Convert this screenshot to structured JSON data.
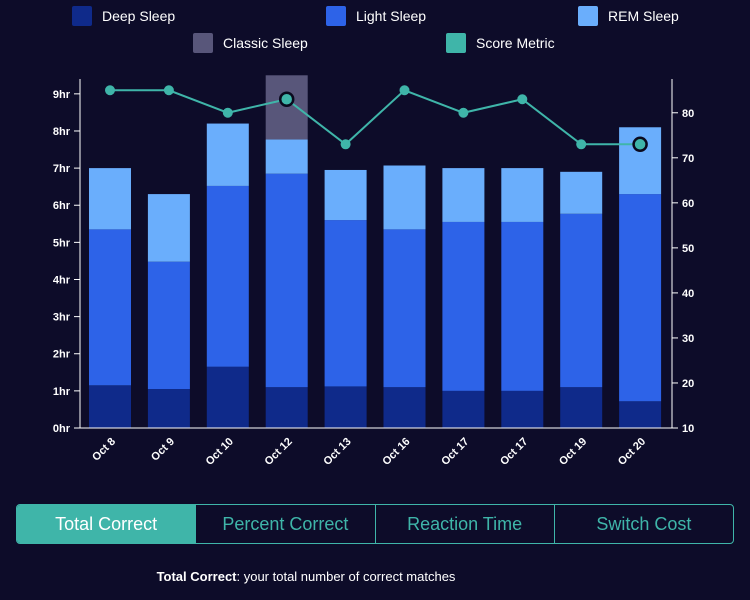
{
  "chart_data": {
    "type": "bar",
    "stacked": true,
    "categories": [
      "Oct 8",
      "Oct 9",
      "Oct 10",
      "Oct 12",
      "Oct 13",
      "Oct 16",
      "Oct 17",
      "Oct 17",
      "Oct 19",
      "Oct 20"
    ],
    "series": [
      {
        "name": "Deep Sleep",
        "color": "#0f2a8a",
        "values": [
          1.15,
          1.05,
          1.65,
          1.1,
          1.12,
          1.1,
          1.0,
          1.0,
          1.1,
          0.72
        ]
      },
      {
        "name": "Light Sleep",
        "color": "#2d63e8",
        "values": [
          4.2,
          3.43,
          4.87,
          5.75,
          4.48,
          4.25,
          4.55,
          4.55,
          4.67,
          5.58
        ]
      },
      {
        "name": "REM Sleep",
        "color": "#6aaefc",
        "values": [
          1.65,
          1.82,
          1.68,
          0.92,
          1.35,
          1.72,
          1.45,
          1.45,
          1.13,
          1.8
        ]
      },
      {
        "name": "Classic Sleep",
        "color": "#58567a",
        "values": [
          0,
          0,
          0,
          1.73,
          0,
          0,
          0,
          0,
          0,
          0
        ]
      }
    ],
    "line_series": {
      "name": "Score Metric",
      "color": "#3fb5a9",
      "values": [
        85,
        85,
        80,
        83,
        73,
        85,
        80,
        83,
        73,
        73
      ],
      "highlighted": [
        false,
        false,
        false,
        true,
        false,
        false,
        false,
        false,
        false,
        true
      ]
    },
    "y_left": {
      "min": 0,
      "max": 9.4,
      "ticks": [
        0,
        1,
        2,
        3,
        4,
        5,
        6,
        7,
        8,
        9
      ],
      "labels": [
        "0hr",
        "1hr",
        "2hr",
        "3hr",
        "4hr",
        "5hr",
        "6hr",
        "7hr",
        "8hr",
        "9hr"
      ]
    },
    "y_right": {
      "min": 10,
      "max": 87.5,
      "ticks": [
        10,
        20,
        30,
        40,
        50,
        60,
        70,
        80
      ],
      "labels": [
        "10",
        "20",
        "30",
        "40",
        "50",
        "60",
        "70",
        "80"
      ]
    },
    "legend": [
      {
        "label": "Deep Sleep",
        "color": "#0f2a8a"
      },
      {
        "label": "Light Sleep",
        "color": "#2d63e8"
      },
      {
        "label": "REM Sleep",
        "color": "#6aaefc"
      },
      {
        "label": "Classic Sleep",
        "color": "#58567a"
      },
      {
        "label": "Score Metric",
        "color": "#3fb5a9"
      }
    ]
  },
  "tabs": {
    "items": [
      "Total Correct",
      "Percent Correct",
      "Reaction Time",
      "Switch Cost"
    ],
    "active_index": 0
  },
  "description": {
    "term": "Total Correct",
    "text": ": your total number of correct matches"
  }
}
